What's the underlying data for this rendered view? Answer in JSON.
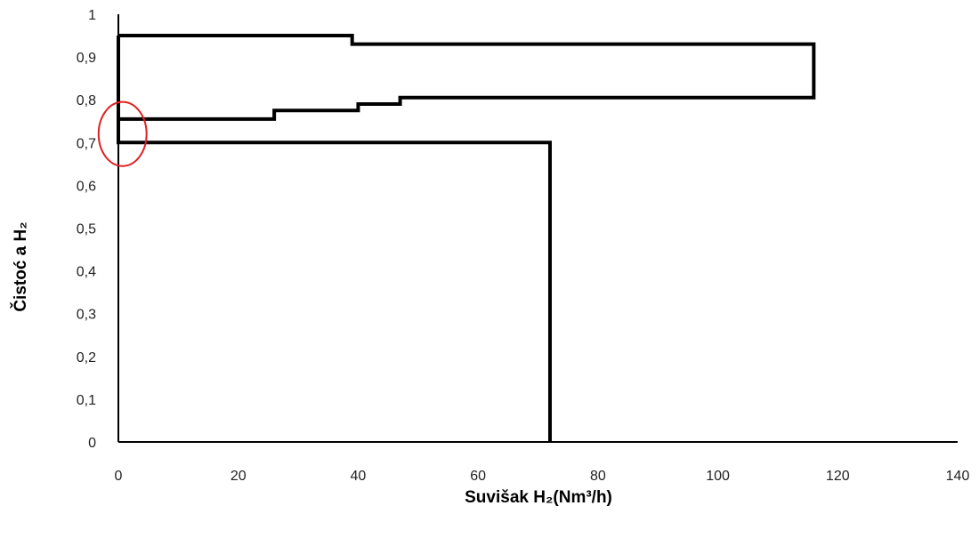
{
  "chart_data": {
    "type": "line",
    "xlabel": "Suvišak H₂(Nm³/h)",
    "ylabel": "Čistoć a H₂",
    "xlim": [
      0,
      140
    ],
    "ylim": [
      0,
      1
    ],
    "x_ticks": [
      "0",
      "20",
      "40",
      "60",
      "80",
      "100",
      "120",
      "140"
    ],
    "y_ticks": [
      "0",
      "0,1",
      "0,2",
      "0,3",
      "0,4",
      "0,5",
      "0,6",
      "0,7",
      "0,8",
      "0,9",
      "1"
    ],
    "grid": false,
    "legend": "none",
    "line_color": "#000000",
    "highlight_color": "#e02020",
    "series": [
      {
        "points": [
          [
            0,
            0.95
          ],
          [
            39,
            0.95
          ],
          [
            39,
            0.93
          ],
          [
            116,
            0.93
          ],
          [
            116,
            0.805
          ],
          [
            47,
            0.805
          ],
          [
            47,
            0.79
          ],
          [
            40,
            0.79
          ],
          [
            40,
            0.775
          ],
          [
            26,
            0.775
          ],
          [
            26,
            0.755
          ],
          [
            0,
            0.755
          ],
          [
            0,
            0.95
          ]
        ]
      },
      {
        "points": [
          [
            0,
            0.755
          ],
          [
            0,
            0.7
          ],
          [
            72,
            0.7
          ],
          [
            72,
            0
          ]
        ]
      }
    ],
    "annotations": [
      {
        "type": "ellipse",
        "center": [
          0.7,
          0.72
        ],
        "radius": [
          4.0,
          0.075
        ],
        "color": "#e02020"
      }
    ]
  }
}
